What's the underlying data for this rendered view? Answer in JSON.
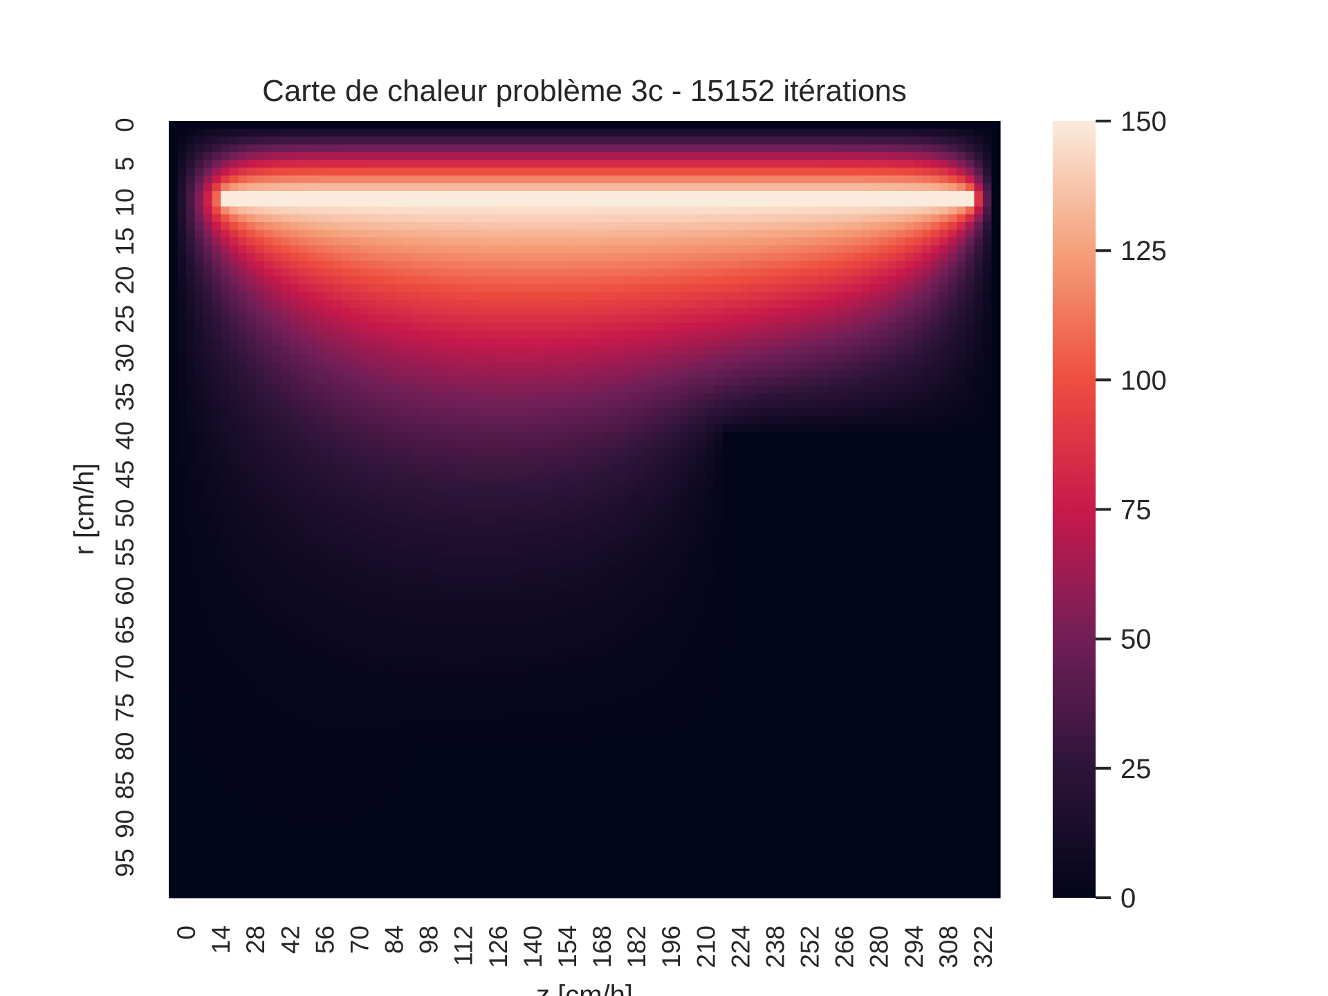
{
  "chart_data": {
    "type": "heatmap",
    "title": "Carte de chaleur problème 3c - 15152 itérations",
    "xlabel": "z [cm/h]",
    "ylabel": "r [cm/h]",
    "x_ticks": [
      "0",
      "14",
      "28",
      "42",
      "56",
      "70",
      "84",
      "98",
      "112",
      "126",
      "140",
      "154",
      "168",
      "182",
      "196",
      "210",
      "224",
      "238",
      "252",
      "266",
      "280",
      "294",
      "308",
      "322"
    ],
    "y_ticks": [
      "0",
      "5",
      "10",
      "15",
      "20",
      "25",
      "30",
      "35",
      "40",
      "45",
      "50",
      "55",
      "60",
      "65",
      "70",
      "75",
      "80",
      "85",
      "90",
      "95"
    ],
    "xlim": [
      0,
      336
    ],
    "ylim": [
      0,
      100
    ],
    "colorbar": {
      "range": [
        0,
        150
      ],
      "ticks": [
        "0",
        "25",
        "50",
        "75",
        "100",
        "125",
        "150"
      ],
      "colormap": "rocket",
      "colors": [
        "#03051a",
        "#2d1439",
        "#701f57",
        "#c8194b",
        "#ee4e3f",
        "#f5a07b",
        "#faebdd"
      ]
    },
    "features": {
      "heated_line": {
        "r": 10,
        "z_range": [
          21,
          325
        ],
        "value": 150
      },
      "upper_wall": {
        "r": 8,
        "value": 90
      },
      "notch_1": {
        "r_min": 40,
        "z_min": 224,
        "value": 0
      },
      "notch_2": {
        "r_min": 80,
        "z_min": 100,
        "value": 0
      },
      "boundary_value": 0
    }
  }
}
